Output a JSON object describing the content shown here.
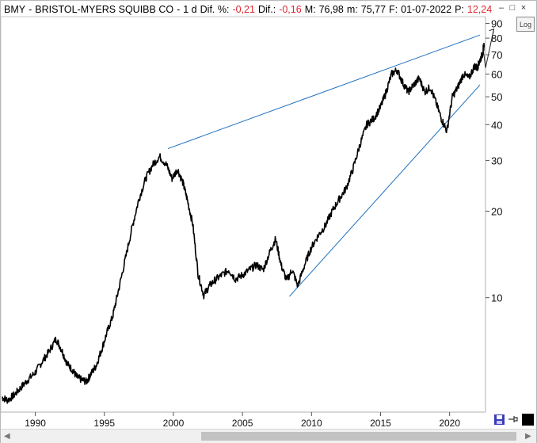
{
  "header": {
    "symbol": "BMY",
    "sep1": "-",
    "company": "BRISTOL-MYERS SQUIBB CO",
    "sep2": "-",
    "period": "1 d",
    "dif_pct_label": "Dif. %:",
    "dif_pct_value": "-0,21",
    "dif_label": "Dif.:",
    "dif_value": "-0,16",
    "high_label": "M:",
    "high_value": "76,98",
    "low_label": "m:",
    "low_value": "75,77",
    "date_label": "F:",
    "date_value": "01-07-2022",
    "price_label": "P:",
    "price_value": "12,24"
  },
  "toolbar": {
    "log_label": "Log"
  },
  "window_controls": {
    "minimize": "–",
    "maximize": "□",
    "close": "×"
  },
  "colors": {
    "trendline": "#1f6fbf",
    "price": "#000000",
    "accent_red": "#e0282e"
  },
  "chart_data": {
    "type": "line",
    "scale": "log",
    "ylim": [
      4,
      95
    ],
    "xlim": [
      1987.5,
      2022.6
    ],
    "y_ticks": [
      10,
      20,
      30,
      40,
      50,
      60,
      70,
      80,
      90
    ],
    "y_tick_labels": [
      "10",
      "20",
      "30",
      "40",
      "50",
      "60",
      "70",
      "80",
      "90"
    ],
    "x_ticks": [
      1990,
      1995,
      2000,
      2005,
      2010,
      2015,
      2020
    ],
    "x_tick_labels": [
      "1990",
      "1995",
      "2000",
      "2005",
      "2010",
      "2015",
      "2020"
    ],
    "grid": false,
    "series": [
      {
        "x": [
          1987.6,
          1988.0,
          1988.5,
          1989.0,
          1989.5,
          1990.0,
          1990.5,
          1991.0,
          1991.5,
          1991.9,
          1992.3,
          1992.7,
          1993.0,
          1993.3,
          1993.7,
          1994.0,
          1994.4,
          1994.8,
          1995.2,
          1995.6,
          1996.0,
          1996.5,
          1997.0,
          1997.5,
          1998.0,
          1998.5,
          1999.0,
          1999.5,
          1999.9,
          2000.3,
          2000.7,
          2001.0,
          2001.4,
          2001.8,
          2002.2,
          2002.6,
          2003.0,
          2003.5,
          2004.0,
          2004.5,
          2005.0,
          2005.5,
          2006.0,
          2006.5,
          2007.0,
          2007.4,
          2007.8,
          2008.2,
          2008.6,
          2009.0,
          2009.5,
          2010.0,
          2010.5,
          2011.0,
          2011.5,
          2012.0,
          2012.5,
          2013.0,
          2013.5,
          2014.0,
          2014.5,
          2015.0,
          2015.4,
          2015.8,
          2016.2,
          2016.6,
          2017.0,
          2017.4,
          2017.8,
          2018.2,
          2018.6,
          2019.0,
          2019.4,
          2019.8,
          2020.2,
          2020.6,
          2021.0,
          2021.4,
          2021.8,
          2022.0,
          2022.2,
          2022.4,
          2022.5
        ],
        "values": [
          4.5,
          4.4,
          4.6,
          4.9,
          5.2,
          5.5,
          6.0,
          6.5,
          7.2,
          6.6,
          5.9,
          5.6,
          5.3,
          5.2,
          5.1,
          5.4,
          5.8,
          6.6,
          7.6,
          8.6,
          10.5,
          13.5,
          17.5,
          22,
          26,
          29,
          31,
          29,
          26,
          28,
          25,
          22,
          18,
          12,
          10.2,
          11,
          11.5,
          12,
          12.5,
          11.6,
          12,
          12.5,
          13,
          12.5,
          14.5,
          16,
          13,
          11.5,
          12.5,
          11,
          13,
          15,
          16.5,
          17.8,
          20,
          22,
          24,
          28,
          34,
          40,
          42,
          46,
          52,
          60,
          62,
          56,
          52,
          55,
          58,
          52,
          54,
          48,
          42,
          38,
          50,
          54,
          60,
          58,
          64,
          63,
          67,
          71,
          76
        ]
      }
    ],
    "trendlines": [
      {
        "x": [
          1999.6,
          2022.2
        ],
        "y": [
          33,
          82
        ]
      },
      {
        "x": [
          2008.4,
          2022.2
        ],
        "y": [
          10.1,
          55
        ]
      }
    ],
    "annotations": [
      {
        "type": "arrow",
        "x": [
          2022.4,
          2022.6,
          2023.2
        ],
        "y": [
          76,
          63,
          86
        ]
      }
    ]
  }
}
